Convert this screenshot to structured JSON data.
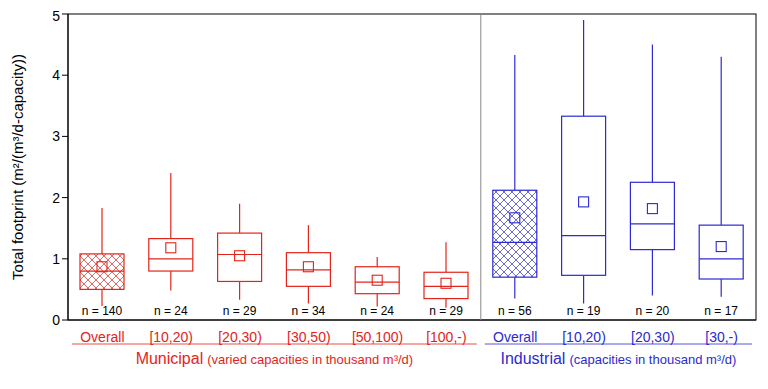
{
  "chart_data": {
    "type": "boxplot",
    "y_label": "Total footprint (m²/(m³/d-capacity))",
    "ylim": [
      0,
      5
    ],
    "yticks": [
      0,
      1,
      2,
      3,
      4,
      5
    ],
    "series": [
      {
        "name": "Municipal",
        "subtitle": "(varied capacities in thousand m³/d)",
        "color": "#e3241b",
        "categories": [
          "Overall",
          "[10,20)",
          "[20,30)",
          "[30,50)",
          "[50,100)",
          "[100,-)"
        ],
        "min": [
          0.23,
          0.48,
          0.33,
          0.27,
          0.22,
          0.2
        ],
        "q1": [
          0.5,
          0.8,
          0.63,
          0.55,
          0.43,
          0.35
        ],
        "median": [
          0.8,
          1.0,
          1.07,
          0.82,
          0.62,
          0.55
        ],
        "q3": [
          1.08,
          1.33,
          1.42,
          1.1,
          0.87,
          0.78
        ],
        "max": [
          1.83,
          2.4,
          1.9,
          1.55,
          1.03,
          1.27
        ],
        "mean": [
          0.87,
          1.18,
          1.05,
          0.87,
          0.65,
          0.6
        ],
        "n_labels": [
          "n = 140",
          "n = 24",
          "n = 29",
          "n = 34",
          "n = 24",
          "n = 29"
        ]
      },
      {
        "name": "Industrial",
        "subtitle": "(capacities in thousand m³/d)",
        "color": "#2b2bd1",
        "categories": [
          "Overall",
          "[10,20)",
          "[20,30)",
          "[30,-)"
        ],
        "min": [
          0.35,
          0.27,
          0.4,
          0.38
        ],
        "q1": [
          0.7,
          0.73,
          1.15,
          0.67
        ],
        "median": [
          1.27,
          1.38,
          1.57,
          1.0
        ],
        "q3": [
          2.12,
          3.33,
          2.25,
          1.55
        ],
        "max": [
          4.33,
          4.9,
          4.5,
          4.3
        ],
        "mean": [
          1.67,
          1.93,
          1.82,
          1.2
        ],
        "n_labels": [
          "n = 56",
          "n = 19",
          "n = 20",
          "n = 17"
        ]
      }
    ]
  }
}
